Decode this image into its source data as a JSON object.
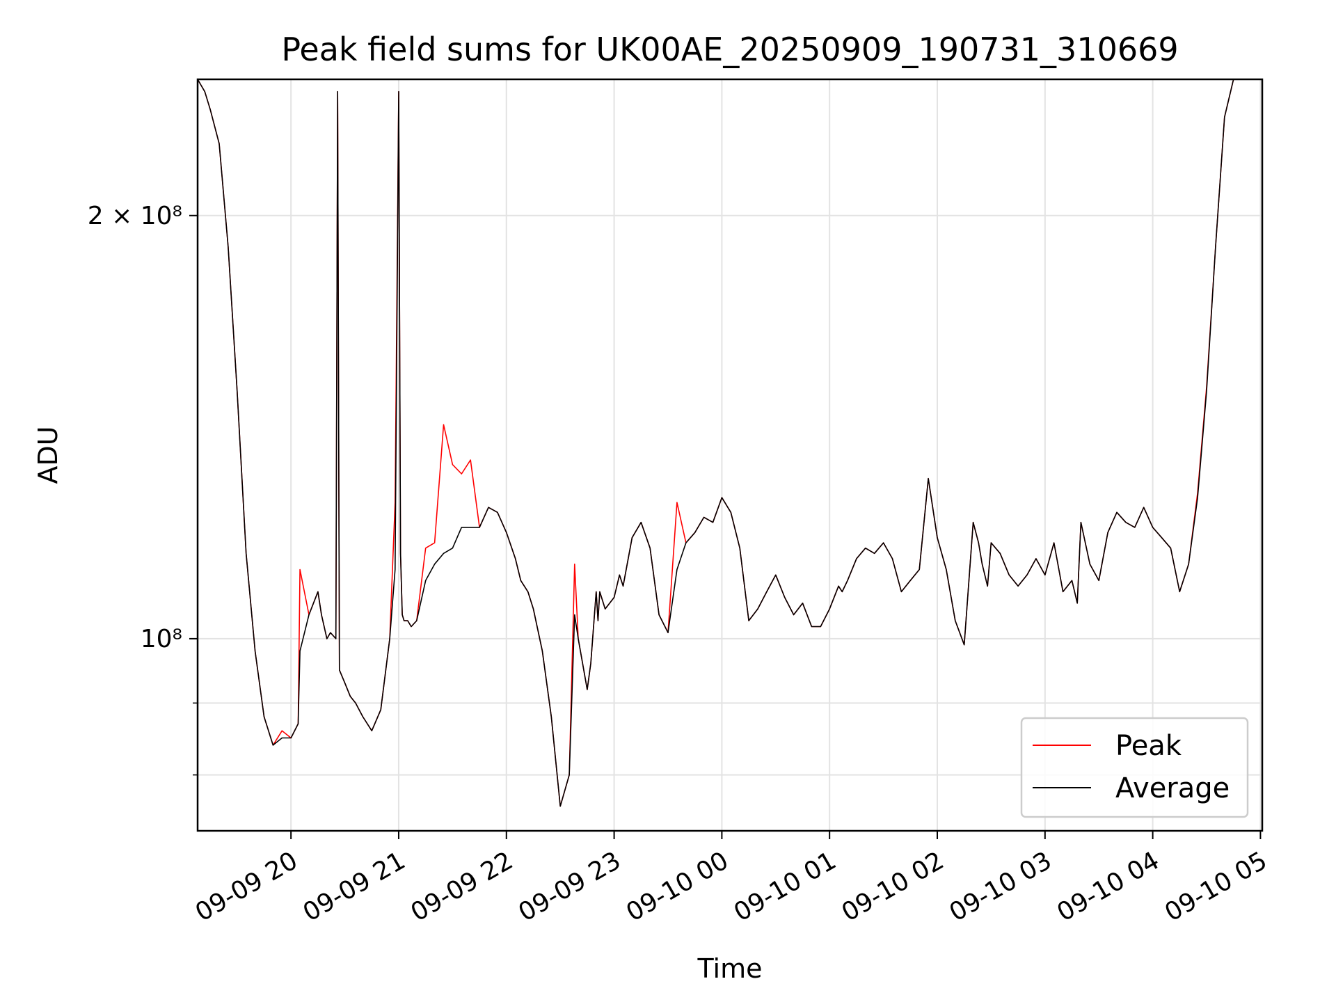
{
  "chart_data": {
    "type": "line",
    "title": "Peak field sums for UK00AE_20250909_190731_310669",
    "xlabel": "Time",
    "ylabel": "ADU",
    "yscale": "log",
    "xlim": [
      "09-09 19:08",
      "09-10 05:01"
    ],
    "ylim": [
      73000000,
      250000000
    ],
    "grid": true,
    "legend": {
      "position": "lower-right",
      "entries": [
        "Peak",
        "Average"
      ]
    },
    "x_ticks": [
      "09-09 20",
      "09-09 21",
      "09-09 22",
      "09-09 23",
      "09-10 00",
      "09-10 01",
      "09-10 02",
      "09-10 03",
      "09-10 04",
      "09-10 05"
    ],
    "y_tick_labels": [
      {
        "label": "2 × 10⁸",
        "value": 200000000
      },
      {
        "label": "10⁸",
        "value": 100000000
      }
    ],
    "y_minor_ticks": [
      90000000,
      80000000
    ],
    "series": [
      {
        "name": "Average",
        "color": "#000000",
        "x": [
          "09-09 19:08",
          "09-09 19:12",
          "09-09 19:15",
          "09-09 19:20",
          "09-09 19:25",
          "09-09 19:30",
          "09-09 19:35",
          "09-09 19:40",
          "09-09 19:45",
          "09-09 19:50",
          "09-09 19:55",
          "09-09 20:00",
          "09-09 20:04",
          "09-09 20:05",
          "09-09 20:10",
          "09-09 20:15",
          "09-09 20:17",
          "09-09 20:20",
          "09-09 20:22",
          "09-09 20:25",
          "09-09 20:26",
          "09-09 20:27",
          "09-09 20:30",
          "09-09 20:33",
          "09-09 20:36",
          "09-09 20:40",
          "09-09 20:45",
          "09-09 20:50",
          "09-09 20:55",
          "09-09 20:58",
          "09-09 21:00",
          "09-09 21:01",
          "09-09 21:02",
          "09-09 21:03",
          "09-09 21:05",
          "09-09 21:07",
          "09-09 21:10",
          "09-09 21:15",
          "09-09 21:20",
          "09-09 21:25",
          "09-09 21:30",
          "09-09 21:35",
          "09-09 21:40",
          "09-09 21:45",
          "09-09 21:50",
          "09-09 21:55",
          "09-09 22:00",
          "09-09 22:05",
          "09-09 22:08",
          "09-09 22:12",
          "09-09 22:15",
          "09-09 22:20",
          "09-09 22:25",
          "09-09 22:30",
          "09-09 22:35",
          "09-09 22:38",
          "09-09 22:40",
          "09-09 22:45",
          "09-09 22:47",
          "09-09 22:50",
          "09-09 22:51",
          "09-09 22:52",
          "09-09 22:55",
          "09-09 23:00",
          "09-09 23:03",
          "09-09 23:05",
          "09-09 23:10",
          "09-09 23:15",
          "09-09 23:20",
          "09-09 23:25",
          "09-09 23:30",
          "09-09 23:35",
          "09-09 23:40",
          "09-09 23:45",
          "09-09 23:50",
          "09-09 23:55",
          "09-10 00:00",
          "09-10 00:05",
          "09-10 00:10",
          "09-10 00:15",
          "09-10 00:20",
          "09-10 00:25",
          "09-10 00:30",
          "09-10 00:35",
          "09-10 00:40",
          "09-10 00:45",
          "09-10 00:50",
          "09-10 00:55",
          "09-10 01:00",
          "09-10 01:05",
          "09-10 01:07",
          "09-10 01:10",
          "09-10 01:15",
          "09-10 01:20",
          "09-10 01:25",
          "09-10 01:30",
          "09-10 01:35",
          "09-10 01:40",
          "09-10 01:45",
          "09-10 01:50",
          "09-10 01:55",
          "09-10 02:00",
          "09-10 02:05",
          "09-10 02:10",
          "09-10 02:15",
          "09-10 02:20",
          "09-10 02:23",
          "09-10 02:25",
          "09-10 02:28",
          "09-10 02:30",
          "09-10 02:35",
          "09-10 02:40",
          "09-10 02:45",
          "09-10 02:50",
          "09-10 02:55",
          "09-10 03:00",
          "09-10 03:05",
          "09-10 03:10",
          "09-10 03:15",
          "09-10 03:18",
          "09-10 03:20",
          "09-10 03:25",
          "09-10 03:30",
          "09-10 03:35",
          "09-10 03:40",
          "09-10 03:45",
          "09-10 03:50",
          "09-10 03:55",
          "09-10 04:00",
          "09-10 04:05",
          "09-10 04:10",
          "09-10 04:15",
          "09-10 04:20",
          "09-10 04:25",
          "09-10 04:30",
          "09-10 04:35",
          "09-10 04:40",
          "09-10 04:45",
          "09-10 04:50",
          "09-10 04:55",
          "09-10 04:58"
        ],
        "values": [
          250000000,
          245000000,
          238000000,
          225000000,
          190000000,
          150000000,
          115000000,
          98000000,
          88000000,
          84000000,
          85000000,
          85000000,
          87000000,
          98000000,
          104000000,
          108000000,
          104000000,
          100000000,
          101000000,
          100000000,
          245000000,
          95000000,
          93000000,
          91000000,
          90000000,
          88000000,
          86000000,
          89000000,
          100000000,
          112000000,
          245000000,
          115000000,
          104000000,
          103000000,
          103000000,
          102000000,
          103000000,
          110000000,
          113000000,
          115000000,
          116000000,
          120000000,
          120000000,
          120000000,
          124000000,
          123000000,
          119000000,
          114000000,
          110000000,
          108000000,
          105000000,
          98000000,
          88000000,
          76000000,
          80000000,
          104000000,
          100000000,
          92000000,
          96000000,
          108000000,
          103000000,
          108000000,
          105000000,
          107000000,
          111000000,
          109000000,
          118000000,
          121000000,
          116000000,
          104000000,
          101000000,
          112000000,
          117000000,
          119000000,
          122000000,
          121000000,
          126000000,
          123000000,
          116000000,
          103000000,
          105000000,
          108000000,
          111000000,
          107000000,
          104000000,
          106000000,
          102000000,
          102000000,
          105000000,
          109000000,
          108000000,
          110000000,
          114000000,
          116000000,
          115000000,
          117000000,
          114000000,
          108000000,
          110000000,
          112000000,
          130000000,
          118000000,
          112000000,
          103000000,
          99000000,
          121000000,
          117000000,
          113000000,
          109000000,
          117000000,
          115000000,
          111000000,
          109000000,
          111000000,
          114000000,
          111000000,
          117000000,
          108000000,
          110000000,
          106000000,
          121000000,
          113000000,
          110000000,
          119000000,
          123000000,
          121000000,
          120000000,
          124000000,
          120000000,
          118000000,
          116000000,
          108000000,
          113000000,
          126000000,
          150000000,
          190000000,
          235000000,
          250000000,
          250000000,
          250000000,
          250000000
        ]
      },
      {
        "name": "Peak",
        "color": "#ff0000",
        "x": [
          "09-09 19:08",
          "09-09 19:12",
          "09-09 19:15",
          "09-09 19:20",
          "09-09 19:25",
          "09-09 19:30",
          "09-09 19:35",
          "09-09 19:40",
          "09-09 19:45",
          "09-09 19:50",
          "09-09 19:55",
          "09-09 20:00",
          "09-09 20:04",
          "09-09 20:05",
          "09-09 20:10",
          "09-09 20:15",
          "09-09 20:17",
          "09-09 20:20",
          "09-09 20:22",
          "09-09 20:25",
          "09-09 20:26",
          "09-09 20:27",
          "09-09 20:30",
          "09-09 20:33",
          "09-09 20:36",
          "09-09 20:40",
          "09-09 20:45",
          "09-09 20:50",
          "09-09 20:55",
          "09-09 20:58",
          "09-09 21:00",
          "09-09 21:01",
          "09-09 21:02",
          "09-09 21:03",
          "09-09 21:05",
          "09-09 21:07",
          "09-09 21:10",
          "09-09 21:15",
          "09-09 21:20",
          "09-09 21:25",
          "09-09 21:30",
          "09-09 21:35",
          "09-09 21:40",
          "09-09 21:45",
          "09-09 21:50",
          "09-09 21:55",
          "09-09 22:00",
          "09-09 22:05",
          "09-09 22:08",
          "09-09 22:12",
          "09-09 22:15",
          "09-09 22:20",
          "09-09 22:25",
          "09-09 22:30",
          "09-09 22:35",
          "09-09 22:38",
          "09-09 22:40",
          "09-09 22:45",
          "09-09 22:47",
          "09-09 22:50",
          "09-09 22:51",
          "09-09 22:52",
          "09-09 22:55",
          "09-09 23:00",
          "09-09 23:03",
          "09-09 23:05",
          "09-09 23:10",
          "09-09 23:15",
          "09-09 23:20",
          "09-09 23:25",
          "09-09 23:30",
          "09-09 23:35",
          "09-09 23:40",
          "09-09 23:45",
          "09-09 23:50",
          "09-09 23:55",
          "09-10 00:00",
          "09-10 00:05",
          "09-10 00:10",
          "09-10 00:15",
          "09-10 00:20",
          "09-10 00:25",
          "09-10 00:30",
          "09-10 00:35",
          "09-10 00:40",
          "09-10 00:45",
          "09-10 00:50",
          "09-10 00:55",
          "09-10 01:00",
          "09-10 01:05",
          "09-10 01:07",
          "09-10 01:10",
          "09-10 01:15",
          "09-10 01:20",
          "09-10 01:25",
          "09-10 01:30",
          "09-10 01:35",
          "09-10 01:40",
          "09-10 01:45",
          "09-10 01:50",
          "09-10 01:55",
          "09-10 02:00",
          "09-10 02:05",
          "09-10 02:10",
          "09-10 02:15",
          "09-10 02:20",
          "09-10 02:23",
          "09-10 02:25",
          "09-10 02:28",
          "09-10 02:30",
          "09-10 02:35",
          "09-10 02:40",
          "09-10 02:45",
          "09-10 02:50",
          "09-10 02:55",
          "09-10 03:00",
          "09-10 03:05",
          "09-10 03:10",
          "09-10 03:15",
          "09-10 03:18",
          "09-10 03:20",
          "09-10 03:25",
          "09-10 03:30",
          "09-10 03:35",
          "09-10 03:40",
          "09-10 03:45",
          "09-10 03:50",
          "09-10 03:55",
          "09-10 04:00",
          "09-10 04:05",
          "09-10 04:10",
          "09-10 04:15",
          "09-10 04:20",
          "09-10 04:25",
          "09-10 04:30",
          "09-10 04:35",
          "09-10 04:40",
          "09-10 04:45",
          "09-10 04:50",
          "09-10 04:55",
          "09-10 04:58"
        ],
        "values": [
          250000000,
          245000000,
          238000000,
          225000000,
          190000000,
          150000000,
          115000000,
          98000000,
          88000000,
          84000000,
          86000000,
          85000000,
          87000000,
          112000000,
          104000000,
          108000000,
          104000000,
          100000000,
          101000000,
          100000000,
          245000000,
          95000000,
          93000000,
          91000000,
          90000000,
          88000000,
          86000000,
          89000000,
          100000000,
          125000000,
          245000000,
          115000000,
          104000000,
          103000000,
          103000000,
          102000000,
          103000000,
          116000000,
          117000000,
          142000000,
          133000000,
          131000000,
          134000000,
          120000000,
          124000000,
          123000000,
          119000000,
          114000000,
          110000000,
          108000000,
          105000000,
          98000000,
          88000000,
          76000000,
          80000000,
          113000000,
          100000000,
          92000000,
          96000000,
          108000000,
          103000000,
          108000000,
          105000000,
          107000000,
          111000000,
          109000000,
          118000000,
          121000000,
          116000000,
          104000000,
          101000000,
          125000000,
          117000000,
          119000000,
          122000000,
          121000000,
          126000000,
          123000000,
          116000000,
          103000000,
          105000000,
          108000000,
          111000000,
          107000000,
          104000000,
          106000000,
          102000000,
          102000000,
          105000000,
          109000000,
          108000000,
          110000000,
          114000000,
          116000000,
          115000000,
          117000000,
          114000000,
          108000000,
          110000000,
          112000000,
          130000000,
          118000000,
          112000000,
          103000000,
          99000000,
          121000000,
          117000000,
          113000000,
          109000000,
          117000000,
          115000000,
          111000000,
          109000000,
          111000000,
          114000000,
          111000000,
          117000000,
          108000000,
          110000000,
          106000000,
          121000000,
          113000000,
          110000000,
          119000000,
          123000000,
          121000000,
          120000000,
          124000000,
          120000000,
          118000000,
          116000000,
          108000000,
          113000000,
          127000000,
          151000000,
          190000000,
          235000000,
          250000000,
          250000000,
          250000000,
          250000000
        ]
      }
    ]
  }
}
